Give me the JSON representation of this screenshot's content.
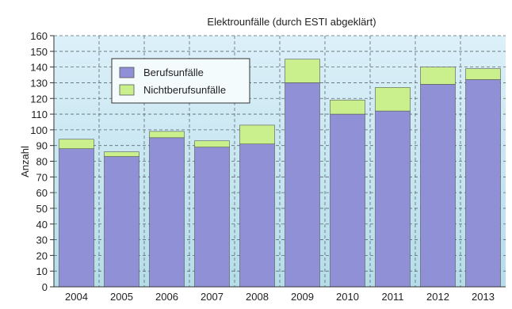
{
  "chart_data": {
    "type": "bar",
    "stacked": true,
    "title": "Elektrounfälle (durch ESTI abgeklärt)",
    "xlabel": "",
    "ylabel": "Anzahl",
    "ylim": [
      0,
      160
    ],
    "ytick_step": 10,
    "grid": true,
    "legend_position": "top-left",
    "categories": [
      "2004",
      "2005",
      "2006",
      "2007",
      "2008",
      "2009",
      "2010",
      "2011",
      "2012",
      "2013"
    ],
    "series": [
      {
        "name": "Berufsunfälle",
        "color": "#8f90d6",
        "values": [
          88,
          83,
          95,
          89,
          91,
          130,
          110,
          112,
          129,
          132
        ]
      },
      {
        "name": "Nichtberufsunfälle",
        "color": "#c9f08c",
        "values": [
          6,
          3,
          4,
          4,
          12,
          15,
          9,
          15,
          11,
          7
        ]
      }
    ],
    "colors": {
      "plot_background_top": "#dcf0f9",
      "plot_background_bottom": "#b5dde8",
      "grid": "#5a6a72",
      "axis": "#333333"
    }
  }
}
